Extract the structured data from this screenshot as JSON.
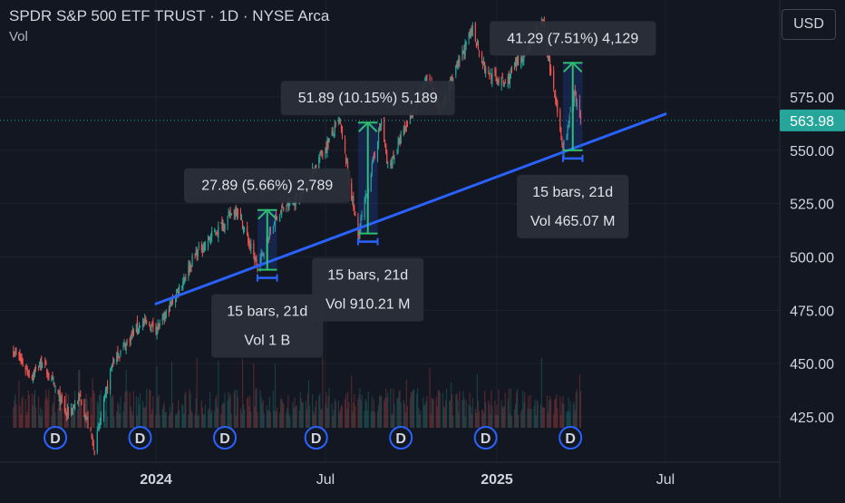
{
  "header": {
    "title": "SPDR S&P 500 ETF TRUST · 1D · NYSE Arca",
    "volume_label": "Vol"
  },
  "currency_button": "USD",
  "colors": {
    "background": "#131722",
    "up": "#26a69a",
    "down": "#ef5350",
    "trendline": "#2962ff",
    "measure_arrow": "#2fbf71",
    "last_price_badge": "#26a69a",
    "dividend_marker": "#2962ff"
  },
  "chart_data": {
    "type": "candlestick",
    "symbol": "SPDR S&P 500 ETF TRUST",
    "interval": "1D",
    "exchange": "NYSE Arca",
    "ylim": [
      405,
      600
    ],
    "y_ticks": [
      425,
      450,
      475,
      500,
      525,
      550,
      575
    ],
    "y_tick_labels": [
      "425.00",
      "450.00",
      "475.00",
      "500.00",
      "525.00",
      "550.00",
      "575.00"
    ],
    "x_ticks": [
      {
        "date": "2024-01-01",
        "label": "2024",
        "bold": true
      },
      {
        "date": "2024-07-01",
        "label": "Jul",
        "bold": false
      },
      {
        "date": "2025-01-01",
        "label": "2025",
        "bold": true
      },
      {
        "date": "2025-07-01",
        "label": "Jul",
        "bold": false
      }
    ],
    "x_range": [
      "2023-08-01",
      "2025-08-31"
    ],
    "last_price": 563.98,
    "last_price_label": "563.98",
    "price_path": [
      {
        "date": "2023-08-01",
        "close": 456
      },
      {
        "date": "2023-08-20",
        "close": 444
      },
      {
        "date": "2023-09-01",
        "close": 451
      },
      {
        "date": "2023-09-27",
        "close": 426
      },
      {
        "date": "2023-10-12",
        "close": 434
      },
      {
        "date": "2023-10-27",
        "close": 410
      },
      {
        "date": "2023-11-15",
        "close": 450
      },
      {
        "date": "2023-12-15",
        "close": 469
      },
      {
        "date": "2024-01-05",
        "close": 467
      },
      {
        "date": "2024-02-12",
        "close": 501
      },
      {
        "date": "2024-03-28",
        "close": 523
      },
      {
        "date": "2024-04-19",
        "close": 495
      },
      {
        "date": "2024-05-10",
        "close": 520
      },
      {
        "date": "2024-06-01",
        "close": 527
      },
      {
        "date": "2024-07-16",
        "close": 564
      },
      {
        "date": "2024-08-05",
        "close": 510
      },
      {
        "date": "2024-08-30",
        "close": 564
      },
      {
        "date": "2024-09-06",
        "close": 541
      },
      {
        "date": "2024-10-18",
        "close": 584
      },
      {
        "date": "2024-11-01",
        "close": 569
      },
      {
        "date": "2024-12-06",
        "close": 607
      },
      {
        "date": "2024-12-20",
        "close": 587
      },
      {
        "date": "2025-01-10",
        "close": 581
      },
      {
        "date": "2025-02-19",
        "close": 610
      },
      {
        "date": "2025-03-13",
        "close": 551
      },
      {
        "date": "2025-03-25",
        "close": 575
      },
      {
        "date": "2025-04-01",
        "close": 563.98
      }
    ],
    "trendline": {
      "start": {
        "date": "2024-01-01",
        "value": 478
      },
      "end": {
        "date": "2025-07-01",
        "value": 567
      }
    },
    "measurements": [
      {
        "from": {
          "date": "2024-04-19",
          "value": 494
        },
        "to": {
          "date": "2024-05-10",
          "value": 522
        },
        "change_label": "27.89 (5.66%) 2,789",
        "bars_label": "15 bars, 21d",
        "volume_label": "Vol 1 B",
        "box": "below"
      },
      {
        "from": {
          "date": "2024-08-05",
          "value": 511
        },
        "to": {
          "date": "2024-08-26",
          "value": 563
        },
        "change_label": "51.89 (10.15%) 5,189",
        "bars_label": "15 bars, 21d",
        "volume_label": "Vol 910.21 M",
        "box": "below"
      },
      {
        "from": {
          "date": "2025-03-13",
          "value": 550
        },
        "to": {
          "date": "2025-04-03",
          "value": 591
        },
        "change_label": "41.29 (7.51%) 4,129",
        "bars_label": "15 bars, 21d",
        "volume_label": "Vol 465.07 M",
        "box": "below"
      }
    ],
    "dividend_dates": [
      "2023-09-15",
      "2023-12-15",
      "2024-03-15",
      "2024-06-21",
      "2024-09-20",
      "2024-12-20",
      "2025-03-21"
    ],
    "dividend_label": "D"
  }
}
